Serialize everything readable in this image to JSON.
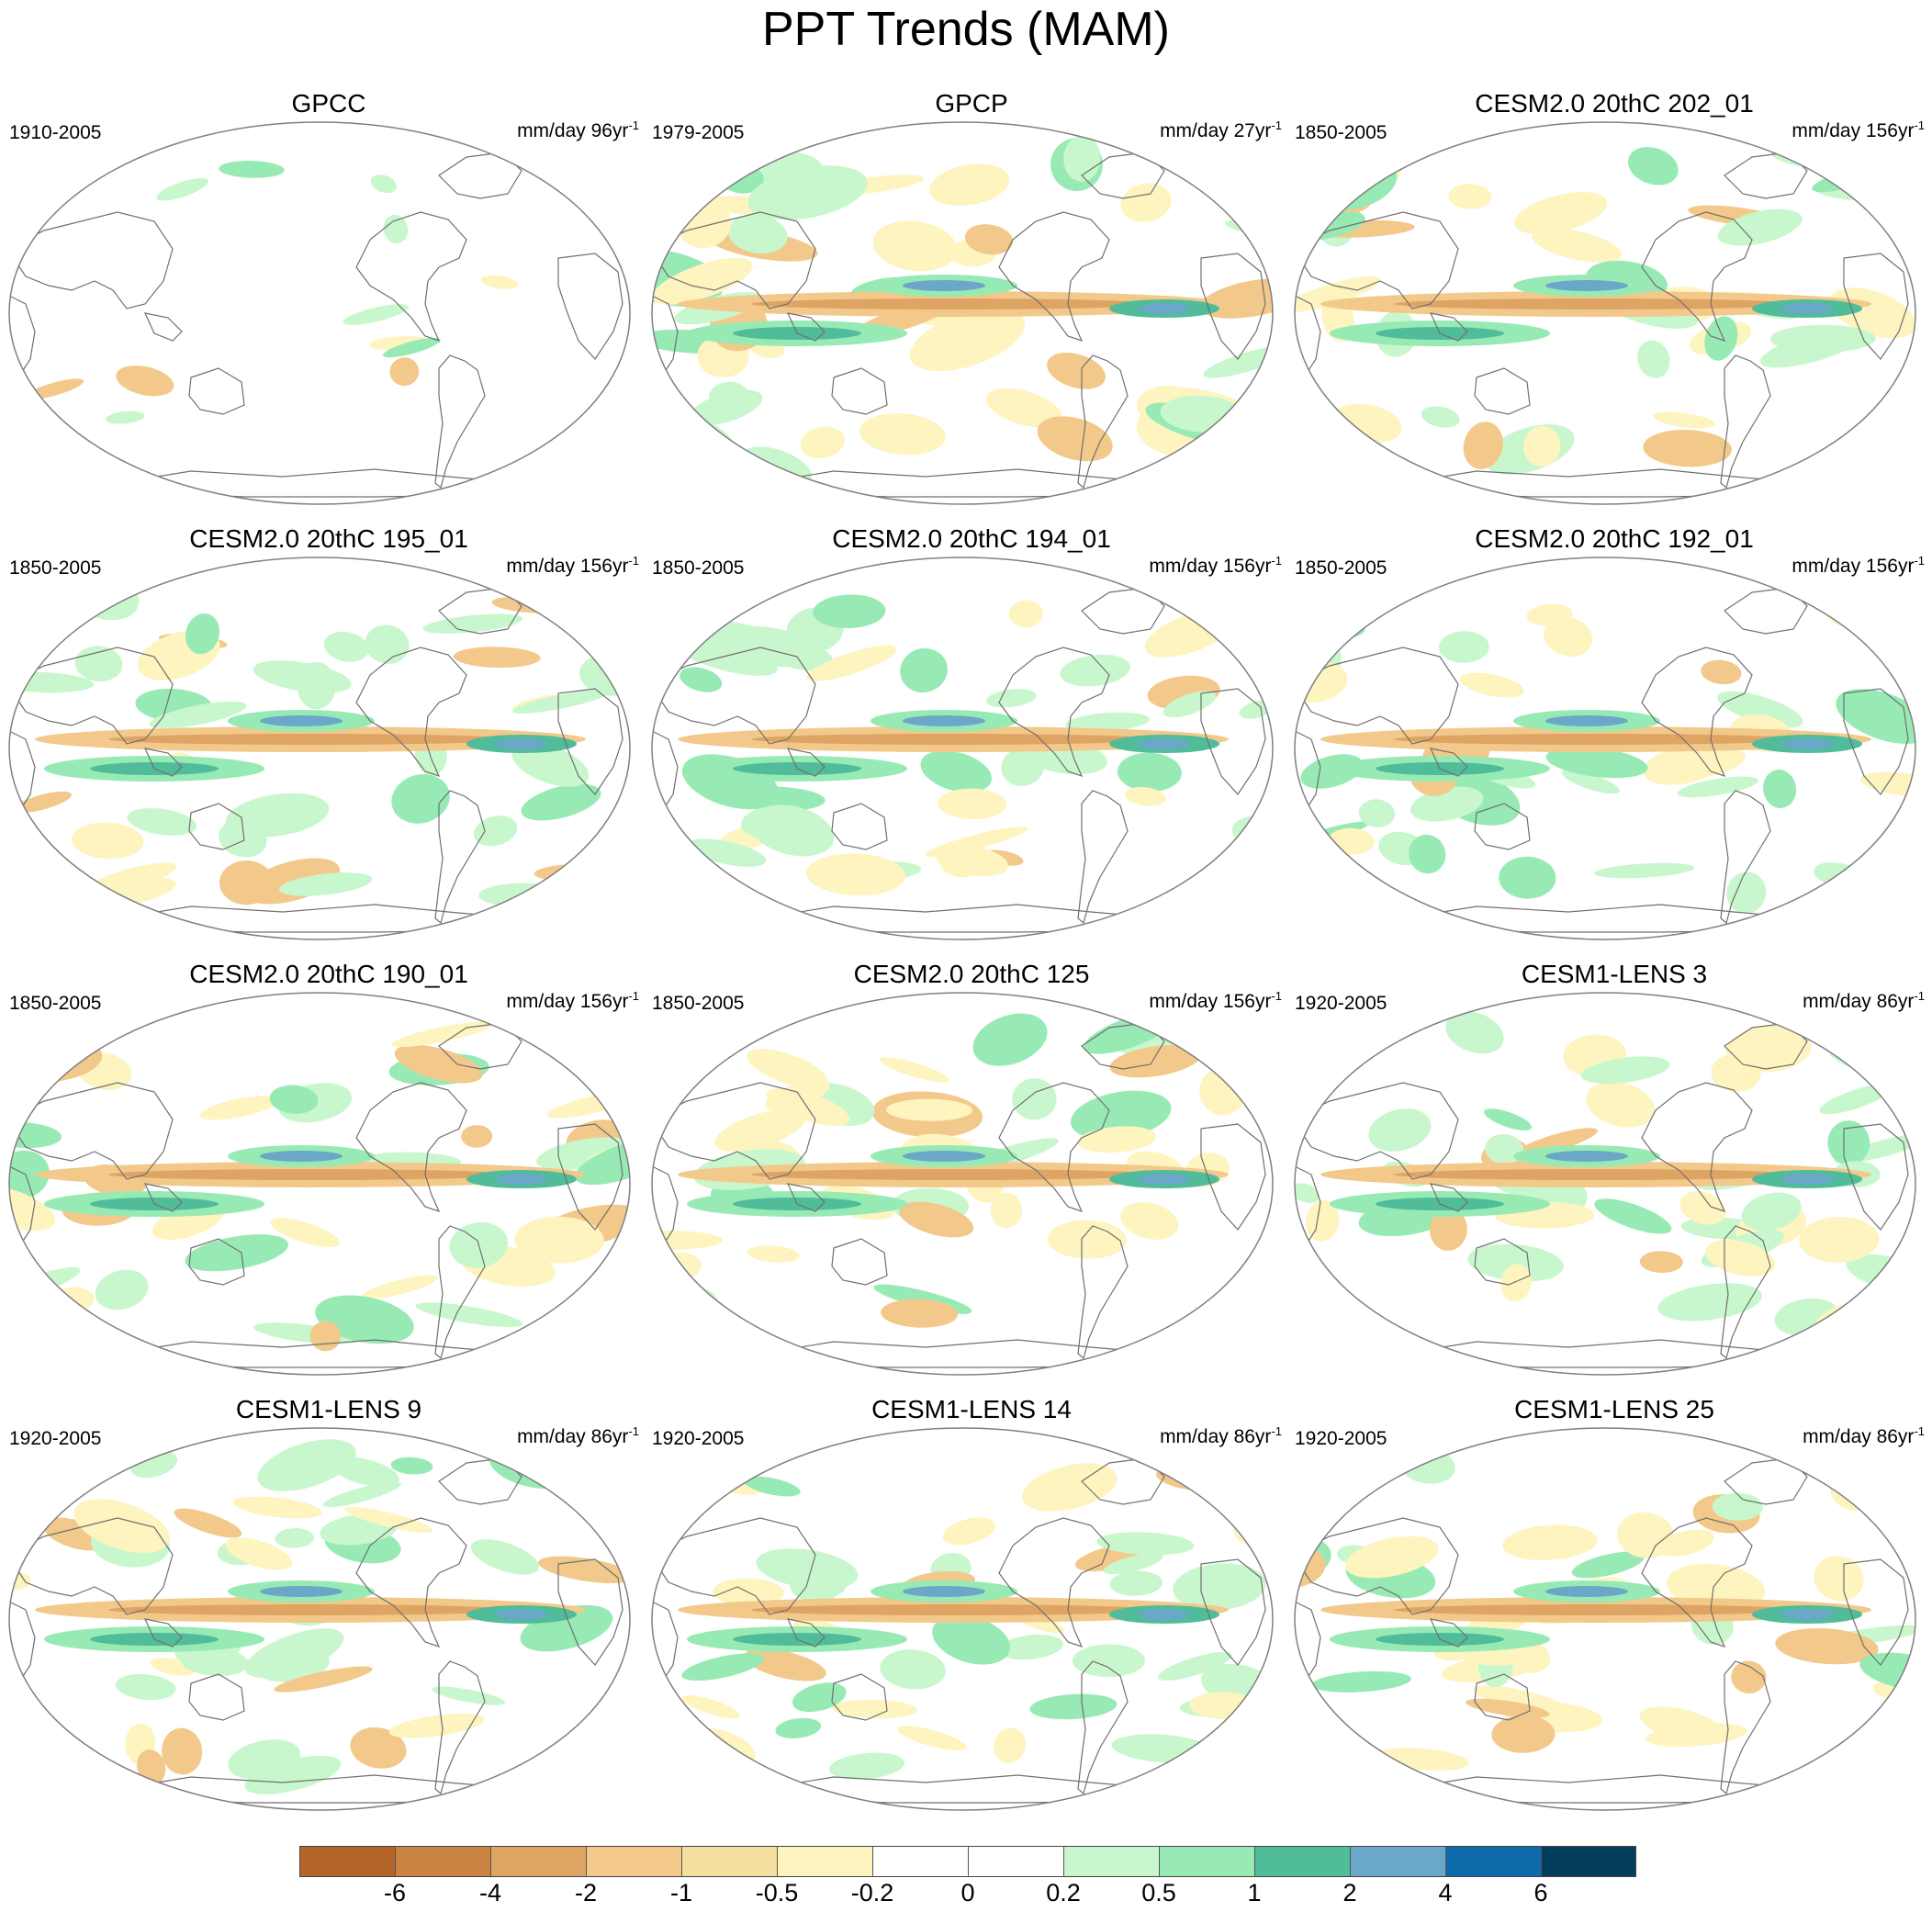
{
  "title": "PPT Trends (MAM)",
  "panels": [
    {
      "title": "GPCC",
      "period": "1910-2005",
      "units": "mm/day 96yr",
      "exp": "-1",
      "style": "obs"
    },
    {
      "title": "GPCP",
      "period": "1979-2005",
      "units": "mm/day 27yr",
      "exp": "-1",
      "style": "sat"
    },
    {
      "title": "CESM2.0 20thC 202_01",
      "period": "1850-2005",
      "units": "mm/day 156yr",
      "exp": "-1",
      "style": "model"
    },
    {
      "title": "CESM2.0 20thC 195_01",
      "period": "1850-2005",
      "units": "mm/day 156yr",
      "exp": "-1",
      "style": "model"
    },
    {
      "title": "CESM2.0 20thC 194_01",
      "period": "1850-2005",
      "units": "mm/day 156yr",
      "exp": "-1",
      "style": "model"
    },
    {
      "title": "CESM2.0 20thC 192_01",
      "period": "1850-2005",
      "units": "mm/day 156yr",
      "exp": "-1",
      "style": "model"
    },
    {
      "title": "CESM2.0 20thC 190_01",
      "period": "1850-2005",
      "units": "mm/day 156yr",
      "exp": "-1",
      "style": "model"
    },
    {
      "title": "CESM2.0 20thC 125",
      "period": "1850-2005",
      "units": "mm/day 156yr",
      "exp": "-1",
      "style": "model"
    },
    {
      "title": "CESM1-LENS 3",
      "period": "1920-2005",
      "units": "mm/day 86yr",
      "exp": "-1",
      "style": "lens"
    },
    {
      "title": "CESM1-LENS 9",
      "period": "1920-2005",
      "units": "mm/day 86yr",
      "exp": "-1",
      "style": "lens"
    },
    {
      "title": "CESM1-LENS 14",
      "period": "1920-2005",
      "units": "mm/day 86yr",
      "exp": "-1",
      "style": "lens"
    },
    {
      "title": "CESM1-LENS 25",
      "period": "1920-2005",
      "units": "mm/day 86yr",
      "exp": "-1",
      "style": "lens"
    }
  ],
  "colorbar": {
    "colors": [
      "#b5652a",
      "#cc8442",
      "#dea464",
      "#f2c98a",
      "#f5dfa0",
      "#fdf4c0",
      "#ffffff",
      "#ffffff",
      "#c9f7cd",
      "#98eab4",
      "#50bc9a",
      "#6aa7c8",
      "#0f6aab",
      "#033d5c"
    ],
    "labels": [
      "-6",
      "-4",
      "-2",
      "-1",
      "-0.5",
      "-0.2",
      "0",
      "0.2",
      "0.5",
      "1",
      "2",
      "4",
      "6"
    ]
  },
  "palette": {
    "dry3": "#cc8442",
    "dry2": "#dea464",
    "dry1": "#f2c98a",
    "dry0": "#fdf4c0",
    "wet0": "#c9f7cd",
    "wet1": "#98eab4",
    "wet2": "#50bc9a",
    "wet3": "#6aa7c8",
    "wet4": "#0f6aab",
    "coast": "#707070",
    "frame": "#808080"
  }
}
